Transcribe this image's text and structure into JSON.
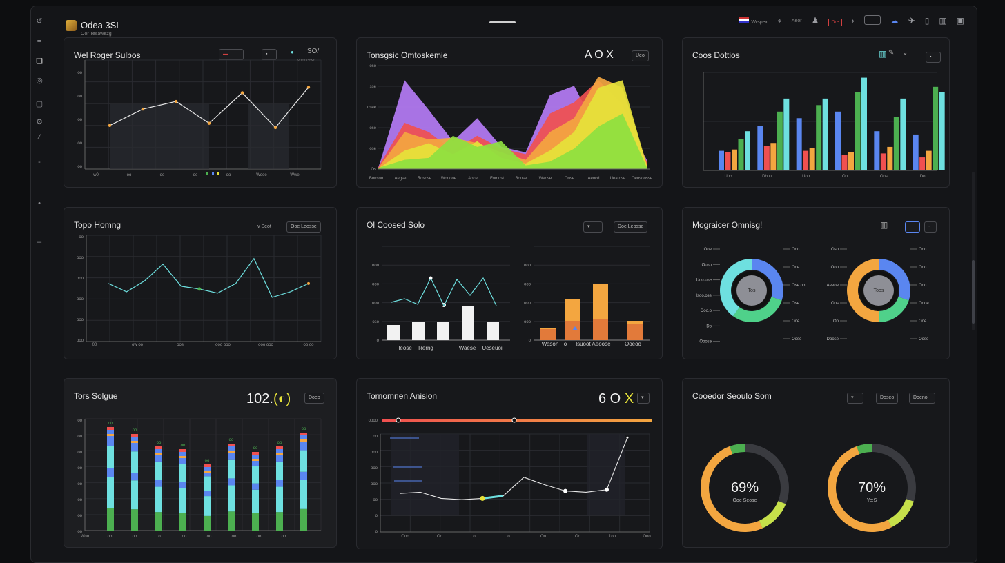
{
  "app": {
    "title": "Odea 3SL",
    "subtitle": "Oor Tesawezg"
  },
  "topbar": {
    "region_label": "Wrspex",
    "user_label": "Aeor",
    "badge_label": "Dre"
  },
  "cards": {
    "c1": {
      "title": "Wel Roger Sulbos",
      "menu_label": "SO/",
      "menu_sub": "voooerwe"
    },
    "c2": {
      "title": "Tonsgsic Omtoskemie",
      "meta": "A O X",
      "btn": "Ueo"
    },
    "c3": {
      "title": "Coos Dottios"
    },
    "c4": {
      "title": "Topo Homng",
      "status": "v Seot",
      "btn": "Ooe Leosse"
    },
    "c5": {
      "title": "Ol Coosed Solo",
      "btn": "Doe Leosse"
    },
    "c6": {
      "title": "Mograicer Omnisg!"
    },
    "c7": {
      "title": "Tors Solgue",
      "value": "102.",
      "btn": "Doeo"
    },
    "c8": {
      "title": "Tornomnen Anision",
      "value": "6 O"
    },
    "c9": {
      "title": "Cooedor Seoulo Som",
      "btn1": "Doseo",
      "btn2": "Doeno",
      "donut1_value": "69%",
      "donut1_label": "Ooe Seose",
      "donut2_value": "70%",
      "donut2_label": "Ye:S"
    }
  },
  "colors": {
    "accent_yellow": "#e6e23a",
    "blue": "#5a86f0",
    "teal": "#6ee0e0",
    "green": "#4caf50",
    "orange": "#f3a640",
    "red": "#f05050",
    "purple": "#b57cf5"
  },
  "chart_data": [
    {
      "id": "c1",
      "type": "line",
      "x_labels": [
        "w0",
        "oo",
        "oo",
        "oe",
        "oo",
        "Wooe",
        "Wwe"
      ],
      "y_labels": [
        "oo",
        "oo",
        "oo",
        "oo",
        "oo"
      ],
      "values": [
        40,
        55,
        62,
        42,
        70,
        38,
        75
      ],
      "ylim": [
        0,
        100
      ]
    },
    {
      "id": "c2",
      "type": "area",
      "x_labels": [
        "Bonsoo",
        "Aegse",
        "Rosose",
        "Wonooe",
        "Aoce",
        "Fomost",
        "Boose",
        "Weose",
        "Oose",
        "Aeocd",
        "Uearose",
        "Oeosoosse"
      ],
      "y_labels": [
        "oso",
        "sse",
        "osee",
        "ose",
        "ose",
        "Os"
      ],
      "series": [
        {
          "color": "#b57cf5",
          "values": [
            8,
            96,
            64,
            30,
            55,
            24,
            18,
            80,
            90,
            40,
            60,
            10
          ]
        },
        {
          "color": "#f05050",
          "values": [
            6,
            50,
            40,
            20,
            36,
            22,
            16,
            60,
            72,
            96,
            70,
            8
          ]
        },
        {
          "color": "#f3a640",
          "values": [
            4,
            40,
            32,
            34,
            28,
            18,
            10,
            40,
            55,
            100,
            88,
            6
          ]
        },
        {
          "color": "#e6e23a",
          "values": [
            2,
            20,
            28,
            16,
            30,
            12,
            6,
            20,
            40,
            88,
            96,
            4
          ]
        },
        {
          "color": "#8ee040",
          "values": [
            2,
            10,
            12,
            36,
            24,
            30,
            4,
            8,
            22,
            46,
            60,
            2
          ]
        }
      ]
    },
    {
      "id": "c3",
      "type": "bar",
      "categories": [
        "Uoo",
        "Dbuu",
        "Uoo",
        "Oo",
        "Oos",
        "Do"
      ],
      "series": [
        {
          "color": "#5a86f0",
          "values": [
            30,
            68,
            80,
            90,
            60,
            55
          ]
        },
        {
          "color": "#f05050",
          "values": [
            28,
            38,
            30,
            24,
            26,
            20
          ]
        },
        {
          "color": "#f3a640",
          "values": [
            32,
            42,
            34,
            28,
            36,
            30
          ]
        },
        {
          "color": "#4caf50",
          "values": [
            48,
            90,
            100,
            120,
            82,
            128
          ]
        },
        {
          "color": "#6ee0e0",
          "values": [
            60,
            110,
            110,
            142,
            110,
            120
          ]
        }
      ]
    },
    {
      "id": "c4",
      "type": "line",
      "x_labels": [
        "00",
        "ow oo",
        "oos",
        "ooo ooo",
        "ooo ooo",
        "oo oo"
      ],
      "y_labels": [
        "oo",
        "ooo",
        "ooo",
        "ooo",
        "ooo",
        "ooo"
      ],
      "values": [
        62,
        56,
        64,
        76,
        60,
        58,
        55,
        62,
        80,
        52,
        56,
        62
      ],
      "ylim": [
        0,
        100
      ]
    },
    {
      "id": "c5a",
      "type": "combo",
      "x_labels": [
        "Ieose",
        "Rerng",
        "Waese",
        "Ueseuoi"
      ],
      "bars": [
        22,
        26,
        26,
        50,
        26
      ],
      "line": [
        45,
        50,
        42,
        80,
        40,
        78,
        55,
        80,
        40
      ]
    },
    {
      "id": "c5b",
      "type": "bar",
      "x_labels": [
        "Wason",
        "o",
        "lsuoot",
        "Aeoose",
        "Ooeoo"
      ],
      "series": [
        {
          "color": "#f3a640",
          "values": [
            18,
            60,
            82,
            28
          ]
        },
        {
          "color": "#e27a3a",
          "values": [
            16,
            28,
            30,
            24
          ]
        }
      ]
    },
    {
      "id": "c6",
      "type": "pie",
      "donuts": [
        {
          "slices": [
            {
              "color": "#5a86f0",
              "value": 30
            },
            {
              "color": "#4fd18a",
              "value": 30
            },
            {
              "color": "#6ee0e0",
              "value": 40
            }
          ],
          "center": "Tos",
          "labels_left": [
            "Ooe",
            "Ooso",
            "Uoo.ose",
            "Isoo.ose",
            "Ooo.o",
            "Do",
            "Ooose"
          ],
          "labels_right": [
            "Ooo",
            "Ooe",
            "Ose.oo",
            "Ose",
            "Ooe",
            "Ooso"
          ]
        },
        {
          "slices": [
            {
              "color": "#5a86f0",
              "value": 30
            },
            {
              "color": "#4fd18a",
              "value": 20
            },
            {
              "color": "#f3a640",
              "value": 50
            }
          ],
          "center": "Toos",
          "labels_left": [
            "Oso",
            "Ooo",
            "Aeeoe",
            "Oos",
            "Oo",
            "Doose"
          ],
          "labels_right": [
            "Ooo",
            "Ooo",
            "Ooo",
            "Oooe",
            "Ooe",
            "Ooso"
          ]
        }
      ]
    },
    {
      "id": "c7",
      "type": "bar",
      "x_labels": [
        "Woo",
        "oo",
        "oo",
        "o",
        "oo",
        "oo",
        "oo",
        "oo",
        "oo"
      ],
      "y_labels": [
        "oo",
        "oo",
        "oo",
        "oo",
        "oo",
        "oo",
        "oo",
        "oo"
      ],
      "values": [
        150,
        140,
        122,
        118,
        96,
        126,
        114,
        122,
        142
      ]
    },
    {
      "id": "c8",
      "type": "line",
      "x_labels": [
        "Ooo",
        "Oo",
        "o",
        "o",
        "Oo",
        "Oo",
        "1oo",
        "Ooo"
      ],
      "y_labels": [
        "oooo",
        "oo",
        "ooo",
        "ooo",
        "ooo",
        "oo",
        "o",
        "o"
      ],
      "values": [
        62,
        64,
        54,
        52,
        54,
        58,
        88,
        76,
        66,
        64,
        68,
        152
      ],
      "ylim": [
        0,
        180
      ]
    },
    {
      "id": "c9",
      "type": "pie",
      "donuts": [
        {
          "value": 69,
          "colors": [
            "#4caf50",
            "#f3a640",
            "#c6e04a"
          ]
        },
        {
          "value": 70,
          "colors": [
            "#4caf50",
            "#f3a640",
            "#c6e04a"
          ]
        }
      ]
    }
  ]
}
